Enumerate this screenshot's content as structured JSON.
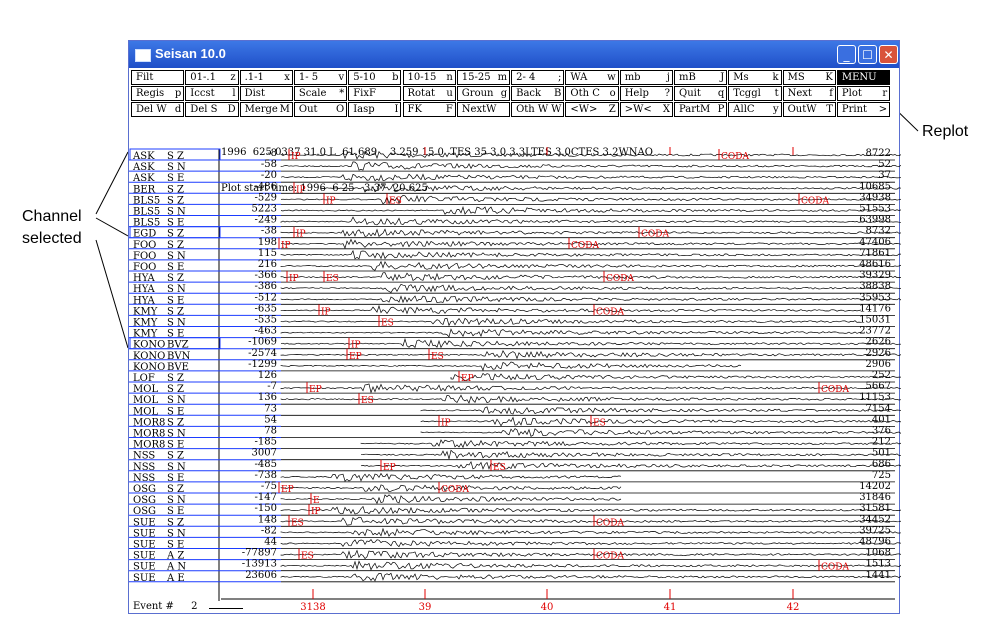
{
  "annotations": {
    "channel_selected": "Channel selected",
    "replot": "Replot"
  },
  "window": {
    "title": "Seisan 10.0",
    "buttons": [
      "minimize",
      "maximize",
      "close"
    ]
  },
  "menu_rows": [
    [
      [
        "Filt",
        ""
      ],
      [
        "01-.1",
        "z"
      ],
      [
        ".1-1",
        "x"
      ],
      [
        "1- 5",
        "v"
      ],
      [
        "5-10",
        "b"
      ],
      [
        "10-15",
        "n"
      ],
      [
        "15-25",
        "m"
      ],
      [
        "2- 4",
        ";"
      ],
      [
        "WA",
        "w"
      ],
      [
        "mb",
        "j"
      ],
      [
        "mB",
        "J"
      ],
      [
        "Ms",
        "k"
      ],
      [
        "MS",
        "K"
      ],
      [
        "MENU",
        ""
      ]
    ],
    [
      [
        "Regis",
        "p"
      ],
      [
        "Iccst",
        "l"
      ],
      [
        "Dist",
        ""
      ],
      [
        "Scale",
        "*"
      ],
      [
        "FixF",
        ""
      ],
      [
        "Rotat",
        "u"
      ],
      [
        "Groun",
        "g"
      ],
      [
        "Back",
        "B"
      ],
      [
        "Oth C",
        "o"
      ],
      [
        "Help",
        "?"
      ],
      [
        "Quit",
        "q"
      ],
      [
        "Tcggl",
        "t"
      ],
      [
        "Next",
        "f"
      ],
      [
        "Plot",
        "r"
      ]
    ],
    [
      [
        "Del W",
        "d"
      ],
      [
        "Del S",
        "D"
      ],
      [
        "Merge",
        "M"
      ],
      [
        "Out",
        "O"
      ],
      [
        "Iasp",
        "I"
      ],
      [
        "FK",
        "F"
      ],
      [
        "NextW",
        ""
      ],
      [
        "Oth W",
        "W"
      ],
      [
        "<W>",
        "Z"
      ],
      [
        ">W<",
        "X"
      ],
      [
        "PartM",
        "P"
      ],
      [
        "AllC",
        "y"
      ],
      [
        "OutW",
        "T"
      ],
      [
        "Print",
        ">"
      ]
    ]
  ],
  "header": {
    "line1": "1996  625 0337 31.0 L  61.689    3.259 15.0  TES 35 3.0 3.3LTES 3.0CTES 3.2WNAO",
    "line2": "Plot start time: 1996  6 25   3:37  20.625"
  },
  "channels": [
    {
      "station": "ASK",
      "comp": "S Z",
      "left": "-8",
      "right": "8722"
    },
    {
      "station": "ASK",
      "comp": "S N",
      "left": "-58",
      "right": "52"
    },
    {
      "station": "ASK",
      "comp": "S E",
      "left": "-20",
      "right": "37"
    },
    {
      "station": "BER",
      "comp": "S Z",
      "left": "-486",
      "right": "10685"
    },
    {
      "station": "BLS5",
      "comp": "S Z",
      "left": "-529",
      "right": "34938"
    },
    {
      "station": "BLS5",
      "comp": "S N",
      "left": "5223",
      "right": "51553"
    },
    {
      "station": "BLS5",
      "comp": "S E",
      "left": "-249",
      "right": "63998"
    },
    {
      "station": "EGD",
      "comp": "S Z",
      "left": "-38",
      "right": "8732"
    },
    {
      "station": "FOO",
      "comp": "S Z",
      "left": "198",
      "right": "47406"
    },
    {
      "station": "FOO",
      "comp": "S N",
      "left": "115",
      "right": "71861"
    },
    {
      "station": "FOO",
      "comp": "S E",
      "left": "216",
      "right": "48616"
    },
    {
      "station": "HYA",
      "comp": "S Z",
      "left": "-366",
      "right": "39329"
    },
    {
      "station": "HYA",
      "comp": "S N",
      "left": "-386",
      "right": "38838"
    },
    {
      "station": "HYA",
      "comp": "S E",
      "left": "-512",
      "right": "35953"
    },
    {
      "station": "KMY",
      "comp": "S Z",
      "left": "-635",
      "right": "14176"
    },
    {
      "station": "KMY",
      "comp": "S N",
      "left": "-535",
      "right": "15031"
    },
    {
      "station": "KMY",
      "comp": "S E",
      "left": "-463",
      "right": "23772"
    },
    {
      "station": "KONO",
      "comp": "BVZ",
      "left": "-1069",
      "right": "2626"
    },
    {
      "station": "KONO",
      "comp": "BVN",
      "left": "-2574",
      "right": "2926"
    },
    {
      "station": "KONO",
      "comp": "BVE",
      "left": "-1299",
      "right": "2906"
    },
    {
      "station": "LOF",
      "comp": "S Z",
      "left": "126",
      "right": "252"
    },
    {
      "station": "MOL",
      "comp": "S Z",
      "left": "-7",
      "right": "5667"
    },
    {
      "station": "MOL",
      "comp": "S N",
      "left": "136",
      "right": "11153"
    },
    {
      "station": "MOL",
      "comp": "S E",
      "left": "73",
      "right": "7154"
    },
    {
      "station": "MOR8",
      "comp": "S Z",
      "left": "54",
      "right": "401"
    },
    {
      "station": "MOR8",
      "comp": "S N",
      "left": "78",
      "right": "376"
    },
    {
      "station": "MOR8",
      "comp": "S E",
      "left": "-185",
      "right": "212"
    },
    {
      "station": "NSS",
      "comp": "S Z",
      "left": "3007",
      "right": "501"
    },
    {
      "station": "NSS",
      "comp": "S N",
      "left": "-485",
      "right": "686"
    },
    {
      "station": "NSS",
      "comp": "S E",
      "left": "-738",
      "right": "725"
    },
    {
      "station": "OSG",
      "comp": "S Z",
      "left": "-75",
      "right": "14202"
    },
    {
      "station": "OSG",
      "comp": "S N",
      "left": "-147",
      "right": "31846"
    },
    {
      "station": "OSG",
      "comp": "S E",
      "left": "-150",
      "right": "31581"
    },
    {
      "station": "SUE",
      "comp": "S Z",
      "left": "148",
      "right": "34452"
    },
    {
      "station": "SUE",
      "comp": "S N",
      "left": "-82",
      "right": "39725"
    },
    {
      "station": "SUE",
      "comp": "S E",
      "left": "44",
      "right": "48796"
    },
    {
      "station": "SUE",
      "comp": "A Z",
      "left": "-77897",
      "right": "1068"
    },
    {
      "station": "SUE",
      "comp": "A N",
      "left": "-13913",
      "right": "1513"
    },
    {
      "station": "SUE",
      "comp": "A E",
      "left": "23606",
      "right": "1441"
    }
  ],
  "time_axis": {
    "labels": [
      "39",
      "40",
      "41",
      "42"
    ],
    "start_label": "3138"
  },
  "event": {
    "label": "Event #",
    "number": "2"
  },
  "phase_labels": [
    "IP",
    "ES",
    "EP",
    "CODA",
    "E"
  ],
  "colors": {
    "trace": "#000000",
    "picks": "#e00000",
    "blue_lines": "#1c3cff",
    "titlebar": "#2a5fdc"
  }
}
